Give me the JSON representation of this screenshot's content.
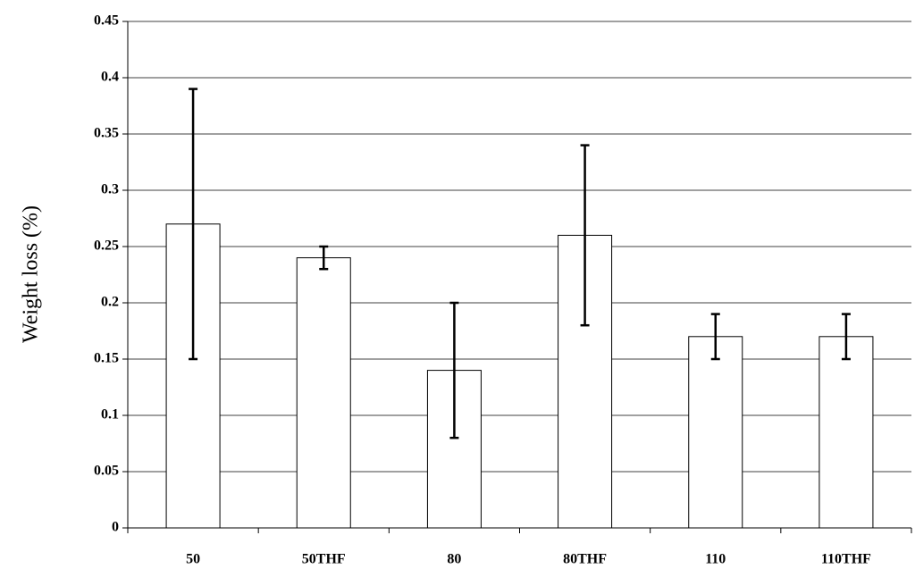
{
  "chart_data": {
    "type": "bar",
    "y_label": "Weight loss (%)",
    "categories": [
      "50",
      "50THF",
      "80",
      "80THF",
      "110",
      "110THF"
    ],
    "values": [
      0.27,
      0.24,
      0.14,
      0.26,
      0.17,
      0.17
    ],
    "errors": [
      0.12,
      0.01,
      0.06,
      0.08,
      0.02,
      0.02
    ],
    "color": "#ffffff",
    "ylim": [
      0,
      0.45
    ],
    "yticks": [
      0,
      0.05,
      0.1,
      0.15,
      0.2,
      0.25,
      0.3,
      0.35,
      0.4,
      0.45
    ],
    "grid": true
  }
}
